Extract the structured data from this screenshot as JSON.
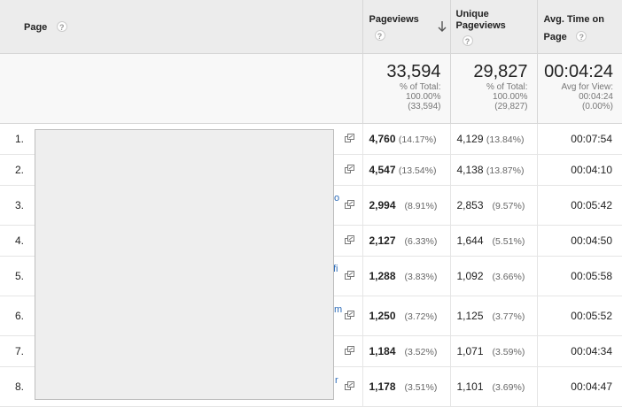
{
  "headers": {
    "page": "Page",
    "pageviews": "Pageviews",
    "unique_l1": "Unique",
    "unique_l2": "Pageviews",
    "avg_l1": "Avg. Time on",
    "avg_l2": "Page",
    "help": "?"
  },
  "totals": {
    "pageviews": {
      "value": "33,594",
      "l1": "% of Total:",
      "l2": "100.00%",
      "l3": "(33,594)"
    },
    "unique": {
      "value": "29,827",
      "l1": "% of Total:",
      "l2": "100.00%",
      "l3": "(29,827)"
    },
    "avg": {
      "value": "00:04:24",
      "l1": "Avg for View:",
      "l2": "00:04:24",
      "l3": "(0.00%)"
    }
  },
  "rows": [
    {
      "idx": "1.",
      "pv": "4,760",
      "pv_pct": "(14.17%)",
      "upv": "4,129",
      "upv_pct": "(13.84%)",
      "avg": "00:07:54",
      "frag": ""
    },
    {
      "idx": "2.",
      "pv": "4,547",
      "pv_pct": "(13.54%)",
      "upv": "4,138",
      "upv_pct": "(13.87%)",
      "avg": "00:04:10",
      "frag": ""
    },
    {
      "idx": "3.",
      "pv": "2,994",
      "pv_pct": "(8.91%)",
      "upv": "2,853",
      "upv_pct": "(9.57%)",
      "avg": "00:05:42",
      "frag": "o"
    },
    {
      "idx": "4.",
      "pv": "2,127",
      "pv_pct": "(6.33%)",
      "upv": "1,644",
      "upv_pct": "(5.51%)",
      "avg": "00:04:50",
      "frag": ""
    },
    {
      "idx": "5.",
      "pv": "1,288",
      "pv_pct": "(3.83%)",
      "upv": "1,092",
      "upv_pct": "(3.66%)",
      "avg": "00:05:58",
      "frag": "fi"
    },
    {
      "idx": "6.",
      "pv": "1,250",
      "pv_pct": "(3.72%)",
      "upv": "1,125",
      "upv_pct": "(3.77%)",
      "avg": "00:05:52",
      "frag": "m"
    },
    {
      "idx": "7.",
      "pv": "1,184",
      "pv_pct": "(3.52%)",
      "upv": "1,071",
      "upv_pct": "(3.59%)",
      "avg": "00:04:34",
      "frag": ""
    },
    {
      "idx": "8.",
      "pv": "1,178",
      "pv_pct": "(3.51%)",
      "upv": "1,101",
      "upv_pct": "(3.69%)",
      "avg": "00:04:47",
      "frag": "r"
    }
  ],
  "colors": {
    "header_bg": "#ececec",
    "totals_bg": "#f8f8f8",
    "link": "#2a6ab7",
    "redaction": "#eeeeee"
  },
  "icons": {
    "sort": "arrow-down-icon",
    "open_page": "external-link-icon",
    "help": "help-icon"
  }
}
